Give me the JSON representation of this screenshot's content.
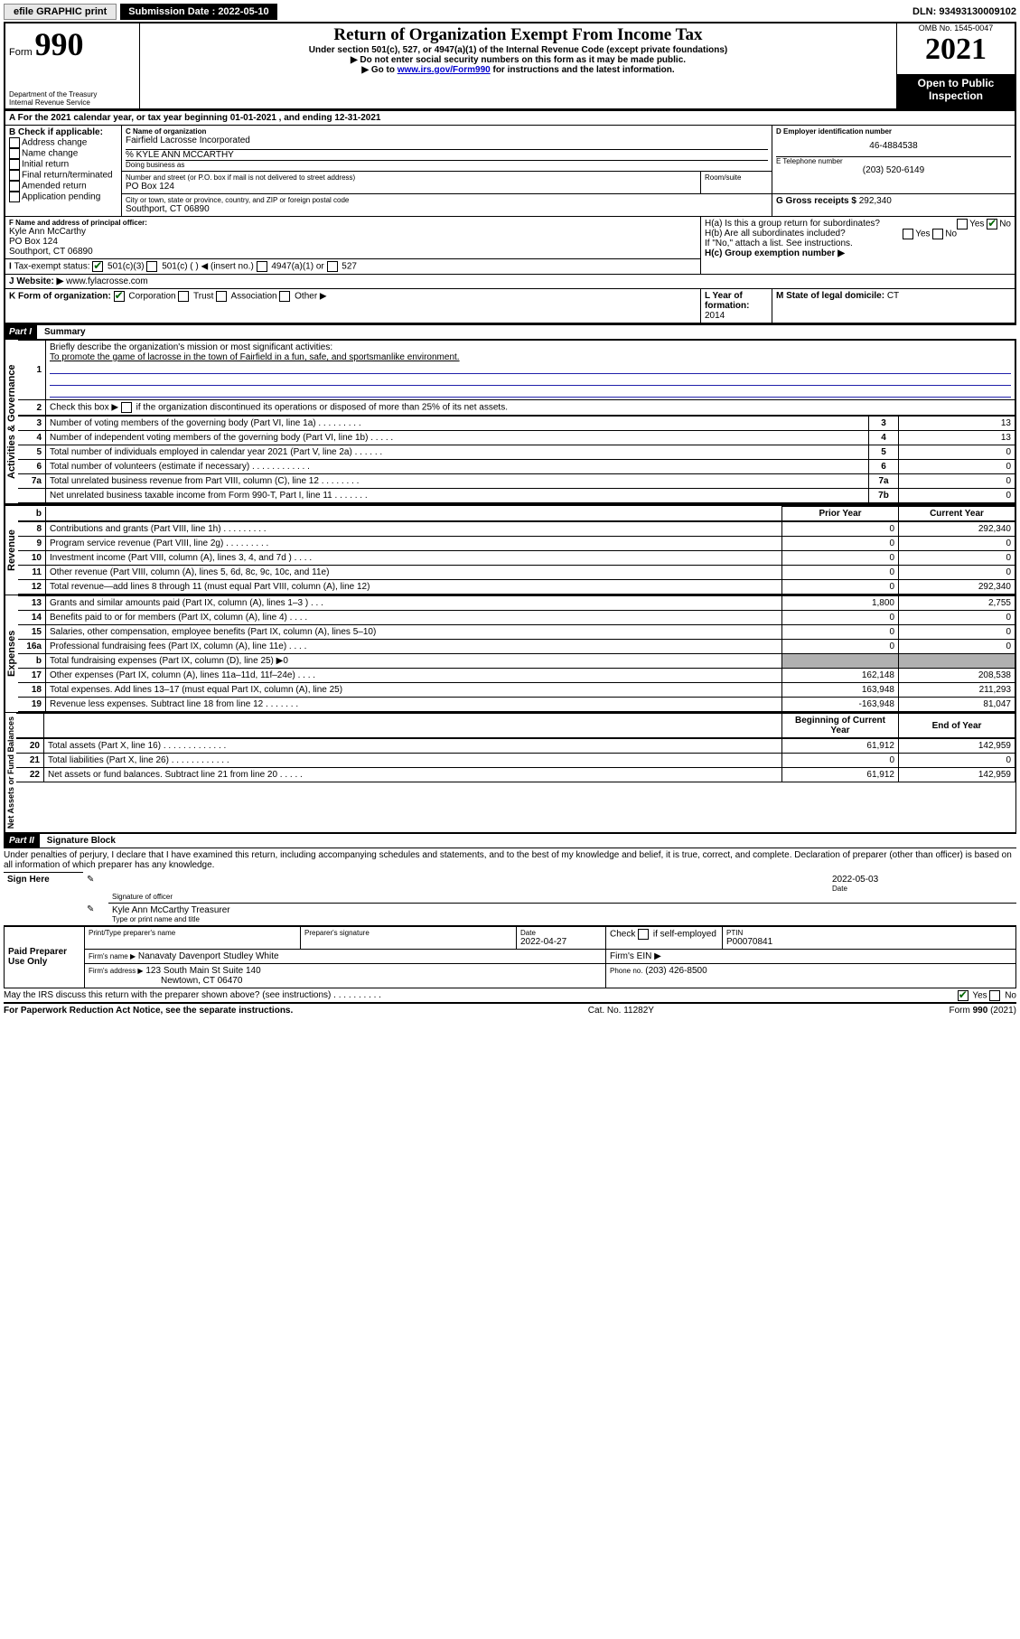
{
  "topbar": {
    "efile": "efile GRAPHIC print",
    "subdate_label": "Submission Date : 2022-05-10",
    "dln": "DLN: 93493130009102"
  },
  "header": {
    "form_prefix": "Form",
    "form_number": "990",
    "dept": "Department of the Treasury",
    "irs": "Internal Revenue Service",
    "title": "Return of Organization Exempt From Income Tax",
    "sub1": "Under section 501(c), 527, or 4947(a)(1) of the Internal Revenue Code (except private foundations)",
    "sub2": "▶ Do not enter social security numbers on this form as it may be made public.",
    "sub3_pre": "▶ Go to ",
    "sub3_link": "www.irs.gov/Form990",
    "sub3_post": " for instructions and the latest information.",
    "omb": "OMB No. 1545-0047",
    "year": "2021",
    "open": "Open to Public Inspection"
  },
  "A": {
    "text": "For the 2021 calendar year, or tax year beginning 01-01-2021   , and ending 12-31-2021"
  },
  "B": {
    "label": "B Check if applicable:",
    "items": [
      "Address change",
      "Name change",
      "Initial return",
      "Final return/terminated",
      "Amended return",
      "Application pending"
    ]
  },
  "C": {
    "name_label": "C Name of organization",
    "name": "Fairfield Lacrosse Incorporated",
    "care_of": "% KYLE ANN MCCARTHY",
    "dba_label": "Doing business as",
    "street_label": "Number and street (or P.O. box if mail is not delivered to street address)",
    "room_label": "Room/suite",
    "street": "PO Box 124",
    "city_label": "City or town, state or province, country, and ZIP or foreign postal code",
    "city": "Southport, CT  06890"
  },
  "D": {
    "label": "D Employer identification number",
    "value": "46-4884538"
  },
  "E": {
    "label": "E Telephone number",
    "value": "(203) 520-6149"
  },
  "G": {
    "label": "G Gross receipts $",
    "value": "292,340"
  },
  "F": {
    "label": "F Name and address of principal officer:",
    "name": "Kyle Ann McCarthy",
    "street": "PO Box 124",
    "city": "Southport, CT  06890"
  },
  "H": {
    "a": "H(a)  Is this a group return for subordinates?",
    "b": "H(b)  Are all subordinates included?",
    "note": "If \"No,\" attach a list. See instructions.",
    "c": "H(c)  Group exemption number ▶",
    "yes": "Yes",
    "no": "No"
  },
  "I": {
    "label": "Tax-exempt status:",
    "c3": "501(c)(3)",
    "c": "501(c) (  ) ◀ (insert no.)",
    "a1": "4947(a)(1) or",
    "527": "527"
  },
  "J": {
    "label": "Website: ▶",
    "value": "www.fylacrosse.com"
  },
  "K": {
    "label": "K Form of organization:",
    "corp": "Corporation",
    "trust": "Trust",
    "assoc": "Association",
    "other": "Other ▶"
  },
  "L": {
    "label": "L Year of formation:",
    "value": "2014"
  },
  "M": {
    "label": "M State of legal domicile:",
    "value": "CT"
  },
  "partI": {
    "header": "Part I",
    "title": "Summary"
  },
  "summary": {
    "l1_label": "Briefly describe the organization's mission or most significant activities:",
    "l1_text": "To promote the game of lacrosse in the town of Fairfield in a fun, safe, and sportsmanlike environment.",
    "l2": "Check this box ▶      if the organization discontinued its operations or disposed of more than 25% of its net assets.",
    "rows_ag": [
      {
        "n": "3",
        "d": "Number of voting members of the governing body (Part VI, line 1a)  .  .  .  .  .  .  .  .  .",
        "b": "3",
        "v": "13"
      },
      {
        "n": "4",
        "d": "Number of independent voting members of the governing body (Part VI, line 1b)  .  .  .  .  .",
        "b": "4",
        "v": "13"
      },
      {
        "n": "5",
        "d": "Total number of individuals employed in calendar year 2021 (Part V, line 2a)  .  .  .  .  .  .",
        "b": "5",
        "v": "0"
      },
      {
        "n": "6",
        "d": "Total number of volunteers (estimate if necessary)  .  .  .  .  .  .  .  .  .  .  .  .",
        "b": "6",
        "v": "0"
      },
      {
        "n": "7a",
        "d": "Total unrelated business revenue from Part VIII, column (C), line 12  .  .  .  .  .  .  .  .",
        "b": "7a",
        "v": "0"
      },
      {
        "n": "",
        "d": "Net unrelated business taxable income from Form 990-T, Part I, line 11  .  .  .  .  .  .  .",
        "b": "7b",
        "v": "0"
      }
    ],
    "col_prior": "Prior Year",
    "col_current": "Current Year",
    "rows_rev": [
      {
        "n": "8",
        "d": "Contributions and grants (Part VIII, line 1h)  .  .  .  .  .  .  .  .  .",
        "p": "0",
        "c": "292,340"
      },
      {
        "n": "9",
        "d": "Program service revenue (Part VIII, line 2g)  .  .  .  .  .  .  .  .  .",
        "p": "0",
        "c": "0"
      },
      {
        "n": "10",
        "d": "Investment income (Part VIII, column (A), lines 3, 4, and 7d )  .  .  .  .",
        "p": "0",
        "c": "0"
      },
      {
        "n": "11",
        "d": "Other revenue (Part VIII, column (A), lines 5, 6d, 8c, 9c, 10c, and 11e)",
        "p": "0",
        "c": "0"
      },
      {
        "n": "12",
        "d": "Total revenue—add lines 8 through 11 (must equal Part VIII, column (A), line 12)",
        "p": "0",
        "c": "292,340"
      }
    ],
    "rows_exp": [
      {
        "n": "13",
        "d": "Grants and similar amounts paid (Part IX, column (A), lines 1–3 )  .  .  .",
        "p": "1,800",
        "c": "2,755"
      },
      {
        "n": "14",
        "d": "Benefits paid to or for members (Part IX, column (A), line 4)  .  .  .  .",
        "p": "0",
        "c": "0"
      },
      {
        "n": "15",
        "d": "Salaries, other compensation, employee benefits (Part IX, column (A), lines 5–10)",
        "p": "0",
        "c": "0"
      },
      {
        "n": "16a",
        "d": "Professional fundraising fees (Part IX, column (A), line 11e)  .  .  .  .",
        "p": "0",
        "c": "0"
      },
      {
        "n": "b",
        "d": "Total fundraising expenses (Part IX, column (D), line 25) ▶0",
        "p": "shade",
        "c": "shade"
      },
      {
        "n": "17",
        "d": "Other expenses (Part IX, column (A), lines 11a–11d, 11f–24e)  .  .  .  .",
        "p": "162,148",
        "c": "208,538"
      },
      {
        "n": "18",
        "d": "Total expenses. Add lines 13–17 (must equal Part IX, column (A), line 25)",
        "p": "163,948",
        "c": "211,293"
      },
      {
        "n": "19",
        "d": "Revenue less expenses. Subtract line 18 from line 12 .  .  .  .  .  .  .",
        "p": "-163,948",
        "c": "81,047"
      }
    ],
    "col_begin": "Beginning of Current Year",
    "col_end": "End of Year",
    "rows_na": [
      {
        "n": "20",
        "d": "Total assets (Part X, line 16)  .  .  .  .  .  .  .  .  .  .  .  .  .",
        "p": "61,912",
        "c": "142,959"
      },
      {
        "n": "21",
        "d": "Total liabilities (Part X, line 26)  .  .  .  .  .  .  .  .  .  .  .  .",
        "p": "0",
        "c": "0"
      },
      {
        "n": "22",
        "d": "Net assets or fund balances. Subtract line 21 from line 20 .  .  .  .  .",
        "p": "61,912",
        "c": "142,959"
      }
    ]
  },
  "side_labels": {
    "ag": "Activities & Governance",
    "rev": "Revenue",
    "exp": "Expenses",
    "na": "Net Assets or Fund Balances"
  },
  "partII": {
    "header": "Part II",
    "title": "Signature Block",
    "decl": "Under penalties of perjury, I declare that I have examined this return, including accompanying schedules and statements, and to the best of my knowledge and belief, it is true, correct, and complete. Declaration of preparer (other than officer) is based on all information of which preparer has any knowledge."
  },
  "sign": {
    "here": "Sign Here",
    "sig_officer": "Signature of officer",
    "date_label": "Date",
    "date": "2022-05-03",
    "name": "Kyle Ann McCarthy Treasurer",
    "name_label": "Type or print name and title"
  },
  "paid": {
    "label": "Paid Preparer Use Only",
    "col_name": "Print/Type preparer's name",
    "col_sig": "Preparer's signature",
    "col_date": "Date",
    "date": "2022-04-27",
    "check": "Check        if self-employed",
    "ptin_label": "PTIN",
    "ptin": "P00070841",
    "firm_name_label": "Firm's name    ▶",
    "firm_name": "Nanavaty Davenport Studley White",
    "firm_ein_label": "Firm's EIN ▶",
    "firm_addr_label": "Firm's address ▶",
    "firm_addr1": "123 South Main St Suite 140",
    "firm_addr2": "Newtown, CT  06470",
    "phone_label": "Phone no.",
    "phone": "(203) 426-8500"
  },
  "discuss": {
    "text": "May the IRS discuss this return with the preparer shown above? (see instructions)  .  .  .  .  .  .  .  .  .  .",
    "yes": "Yes",
    "no": "No"
  },
  "footer": {
    "left": "For Paperwork Reduction Act Notice, see the separate instructions.",
    "mid": "Cat. No. 11282Y",
    "right": "Form 990 (2021)"
  }
}
